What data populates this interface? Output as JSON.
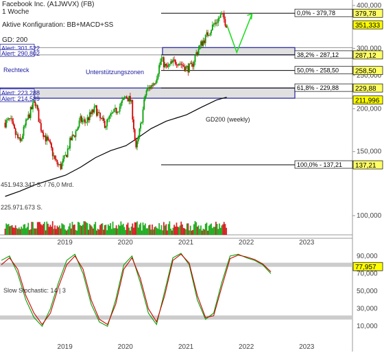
{
  "header": {
    "title": "Facebook Inc. (A1JWVX) (FB)",
    "period": "1 Woche",
    "config": "Aktive Konfiguration: BB+MACD+SS",
    "gd_label": "GD: 200"
  },
  "annotations": {
    "rechteck": "Rechteck",
    "support_zones": "Unterstützungszonen",
    "gd200": "GD200 (weekly)",
    "volume_total": "451.943.347 S. / 76,0 Mrd.",
    "volume_last": "225.971.673 S.",
    "stochastic": "Slow Stochastic: 14 | 3"
  },
  "alerts": [
    "Alert: 301,522",
    "Alert: 290,802",
    "Alert: 223,288",
    "Alert: 214,589"
  ],
  "fib_levels": [
    {
      "label": "0,0% - 379,78",
      "value": 379.78
    },
    {
      "label": "38,2% - 287,12",
      "value": 287.12
    },
    {
      "label": "50,0% - 258,50",
      "value": 258.5
    },
    {
      "label": "61,8% - 229,88",
      "value": 229.88
    },
    {
      "label": "100,0% - 137,21",
      "value": 137.21
    }
  ],
  "price_tags": [
    {
      "label": "379,78",
      "value": 379.78,
      "color": "#ffff66"
    },
    {
      "label": "351,333",
      "value": 351.333,
      "color": "#ffff00"
    },
    {
      "label": "287,12",
      "value": 287.12,
      "color": "#ffff66"
    },
    {
      "label": "258,50",
      "value": 258.5,
      "color": "#ffff66"
    },
    {
      "label": "229,88",
      "value": 229.88,
      "color": "#ffff66"
    },
    {
      "label": "211,996",
      "value": 211.996,
      "color": "#ffff00"
    },
    {
      "label": "137,21",
      "value": 137.21,
      "color": "#ffff66"
    }
  ],
  "stoch_tag": {
    "label": "77,957",
    "value": 77.957,
    "color": "#ffff00"
  },
  "colors": {
    "up": "#00a000",
    "down": "#d00000",
    "zone_fill": "#d8d8d8",
    "zone_border": "#2020a0",
    "ma": "#000000",
    "forecast": "#22dd22"
  },
  "chart_data": [
    {
      "type": "line",
      "title": "Facebook Inc. (A1JWVX) (FB)",
      "scale": "log",
      "price_axis_ticks": [
        "400,000",
        "350,000",
        "300,000",
        "250,000",
        "200,000",
        "150,000",
        "100,000"
      ],
      "price_axis_values": [
        400,
        350,
        300,
        250,
        200,
        150,
        100
      ],
      "time_axis_ticks": [
        "2019",
        "2020",
        "2021",
        "2022",
        "2023"
      ],
      "x": [
        "2018-01",
        "2018-04",
        "2018-07",
        "2018-10",
        "2019-01",
        "2019-04",
        "2019-07",
        "2019-10",
        "2020-01",
        "2020-03",
        "2020-06",
        "2020-09",
        "2021-01",
        "2021-04",
        "2021-07",
        "2021-09"
      ],
      "series": [
        {
          "name": "GD200 (weekly)",
          "values": [
            111,
            115,
            120,
            124,
            128,
            135,
            144,
            151,
            156,
            163,
            175,
            184,
            192,
            202,
            212,
            216
          ]
        }
      ],
      "close_path": [
        [
          "2018-01",
          182
        ],
        [
          "2018-02",
          185
        ],
        [
          "2018-03",
          170
        ],
        [
          "2018-04",
          159
        ],
        [
          "2018-05",
          178
        ],
        [
          "2018-06",
          195
        ],
        [
          "2018-07",
          210
        ],
        [
          "2018-08",
          178
        ],
        [
          "2018-09",
          165
        ],
        [
          "2018-10",
          155
        ],
        [
          "2018-11",
          140
        ],
        [
          "2018-12",
          135
        ],
        [
          "2019-01",
          145
        ],
        [
          "2019-02",
          162
        ],
        [
          "2019-03",
          170
        ],
        [
          "2019-04",
          185
        ],
        [
          "2019-05",
          183
        ],
        [
          "2019-06",
          192
        ],
        [
          "2019-07",
          200
        ],
        [
          "2019-08",
          185
        ],
        [
          "2019-09",
          180
        ],
        [
          "2019-10",
          190
        ],
        [
          "2019-11",
          197
        ],
        [
          "2019-12",
          205
        ],
        [
          "2020-01",
          218
        ],
        [
          "2020-02",
          210
        ],
        [
          "2020-03",
          150
        ],
        [
          "2020-04",
          180
        ],
        [
          "2020-05",
          225
        ],
        [
          "2020-06",
          233
        ],
        [
          "2020-07",
          245
        ],
        [
          "2020-08",
          280
        ],
        [
          "2020-09",
          262
        ],
        [
          "2020-10",
          270
        ],
        [
          "2020-11",
          276
        ],
        [
          "2020-12",
          270
        ],
        [
          "2021-01",
          262
        ],
        [
          "2021-02",
          265
        ],
        [
          "2021-03",
          290
        ],
        [
          "2021-04",
          310
        ],
        [
          "2021-05",
          325
        ],
        [
          "2021-06",
          345
        ],
        [
          "2021-07",
          360
        ],
        [
          "2021-08",
          375
        ],
        [
          "2021-09",
          352
        ]
      ],
      "forecast_path": [
        [
          "2021-09",
          352
        ],
        [
          "2021-11",
          292
        ],
        [
          "2022-02",
          378
        ]
      ],
      "support_zones": [
        [
          287.12,
          301.52
        ],
        [
          214.59,
          229.88
        ]
      ]
    },
    {
      "type": "bar",
      "title": "Volume",
      "axis_ticks": [
        "100,000"
      ],
      "note": "weekly volume bars"
    },
    {
      "type": "line",
      "title": "Slow Stochastic: 14 | 3",
      "axis_ticks": [
        "90,000",
        "70,000",
        "50,000",
        "30,000",
        "10,000"
      ],
      "axis_values": [
        90,
        70,
        50,
        30,
        10
      ],
      "ylim": [
        0,
        100
      ],
      "bands": [
        80,
        20
      ],
      "time_axis_ticks": [
        "2019",
        "2020",
        "2021",
        "2022",
        "2023"
      ],
      "series": [
        {
          "name": "%K",
          "values": [
            85,
            90,
            70,
            40,
            20,
            10,
            30,
            60,
            85,
            92,
            70,
            35,
            15,
            10,
            40,
            80,
            90,
            60,
            25,
            12,
            50,
            88,
            93,
            80,
            40,
            18,
            25,
            60,
            90,
            92,
            88,
            85,
            80,
            70
          ]
        },
        {
          "name": "%D",
          "values": [
            80,
            88,
            75,
            45,
            25,
            12,
            25,
            55,
            80,
            90,
            75,
            40,
            18,
            12,
            35,
            75,
            88,
            65,
            30,
            15,
            45,
            85,
            92,
            82,
            45,
            20,
            22,
            55,
            87,
            91,
            89,
            86,
            81,
            72
          ]
        }
      ]
    }
  ]
}
